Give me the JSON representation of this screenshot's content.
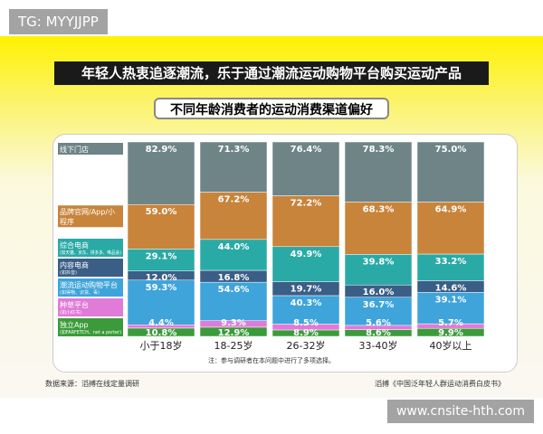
{
  "watermark_top": "TG: MYYJJPP",
  "watermark_bottom": "www.cnsite-hth.com",
  "title": "年轻人热衷追逐潮流，乐于通过潮流运动购物平台购买运动产品",
  "subtitle": "不同年龄消费者的运动消费渠道偏好",
  "note": "注：参与调研者在本问题中进行了多项选择。",
  "source": "数据来源：滔搏在线定量调研",
  "credit": "滔搏《中国泛年轻人群运动消费白皮书》",
  "chart_data": {
    "type": "bar",
    "stacked": true,
    "categories": [
      "小于18岁",
      "18-25岁",
      "26-32岁",
      "33-40岁",
      "40岁以上"
    ],
    "series": [
      {
        "name": "线下门店",
        "note": "",
        "color": "#6e8487",
        "values": [
          82.9,
          71.3,
          76.4,
          78.3,
          75.0
        ]
      },
      {
        "name": "品牌官网/App/小程序",
        "note": "",
        "color": "#c8843b",
        "values": [
          59.0,
          67.2,
          72.2,
          68.3,
          64.9
        ]
      },
      {
        "name": "综合电商",
        "note": "(如天猫、京东、拼多多、唯品会)",
        "color": "#2aaaa6",
        "values": [
          29.1,
          44.0,
          49.9,
          39.8,
          33.2
        ]
      },
      {
        "name": "内容电商",
        "note": "(如抖音)",
        "color": "#3a5e86",
        "values": [
          12.0,
          16.8,
          19.7,
          16.0,
          14.6
        ]
      },
      {
        "name": "潮流运动购物平台",
        "note": "(如得物、识货、毒)",
        "color": "#3ea4da",
        "values": [
          59.3,
          54.6,
          40.3,
          36.7,
          39.1
        ]
      },
      {
        "name": "种草平台",
        "note": "(如小红书)",
        "color": "#e07bd8",
        "values": [
          4.4,
          9.3,
          8.5,
          5.6,
          5.7
        ]
      },
      {
        "name": "独立App",
        "note": "(如FARFETCH、net a porter)",
        "color": "#3b9b3a",
        "values": [
          10.8,
          12.9,
          8.9,
          8.6,
          9.9
        ]
      }
    ]
  }
}
